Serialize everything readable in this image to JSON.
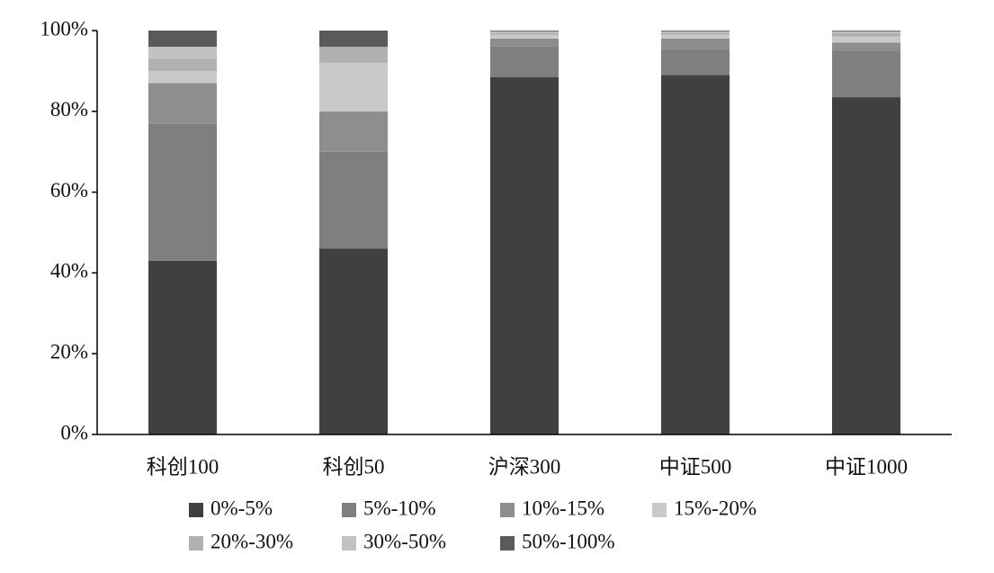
{
  "chart_data": {
    "type": "stacked_bar",
    "categories": [
      "科创100",
      "科创50",
      "沪深300",
      "中证500",
      "中证1000"
    ],
    "series": [
      {
        "name": "0%-5%",
        "color": "#404040",
        "values": [
          43,
          46,
          88.5,
          89,
          83.5
        ]
      },
      {
        "name": "5%-10%",
        "color": "#7f7f7f",
        "values": [
          34,
          24,
          7.5,
          6.5,
          11.5
        ]
      },
      {
        "name": "10%-15%",
        "color": "#8e8e8e",
        "values": [
          10,
          10,
          2,
          2.5,
          2
        ]
      },
      {
        "name": "15%-20%",
        "color": "#c9c9c9",
        "values": [
          3,
          12,
          1,
          1,
          1.5
        ]
      },
      {
        "name": "20%-30%",
        "color": "#b0b0b0",
        "values": [
          3,
          4,
          0.5,
          0.5,
          1
        ]
      },
      {
        "name": "30%-50%",
        "color": "#c2c2c2",
        "values": [
          3,
          0,
          0.3,
          0.3,
          0.3
        ]
      },
      {
        "name": "50%-100%",
        "color": "#5a5a5a",
        "values": [
          4,
          4,
          0.2,
          0.2,
          0.2
        ]
      }
    ],
    "ylim": [
      0,
      100
    ],
    "yticks": [
      {
        "value": 0,
        "label": "0%"
      },
      {
        "value": 20,
        "label": "20%"
      },
      {
        "value": 40,
        "label": "40%"
      },
      {
        "value": 60,
        "label": "60%"
      },
      {
        "value": 80,
        "label": "80%"
      },
      {
        "value": 100,
        "label": "100%"
      }
    ],
    "grid": false
  }
}
